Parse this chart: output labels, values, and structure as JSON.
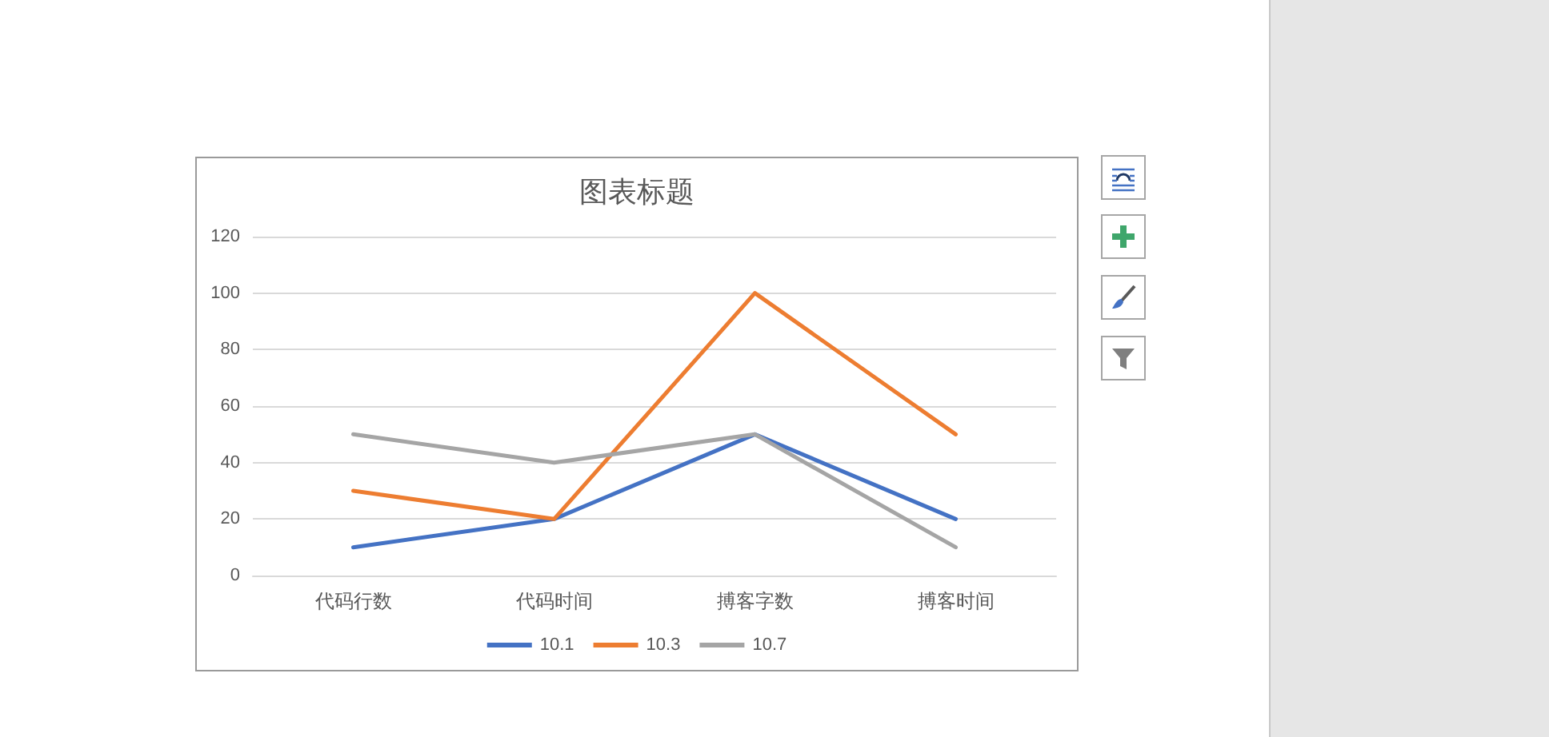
{
  "chart_data": {
    "type": "line",
    "title": "图表标题",
    "categories": [
      "代码行数",
      "代码时间",
      "搏客字数",
      "搏客时间"
    ],
    "series": [
      {
        "name": "10.1",
        "color": "#4472c4",
        "values": [
          10,
          20,
          50,
          20
        ]
      },
      {
        "name": "10.3",
        "color": "#ed7d31",
        "values": [
          30,
          20,
          100,
          50
        ]
      },
      {
        "name": "10.7",
        "color": "#a5a5a5",
        "values": [
          50,
          40,
          50,
          10
        ]
      }
    ],
    "ylim": [
      0,
      120
    ],
    "yticks": [
      0,
      20,
      40,
      60,
      80,
      100,
      120
    ],
    "grid": "y",
    "legend": "bottom",
    "marker": "none",
    "line_style": "solid"
  }
}
